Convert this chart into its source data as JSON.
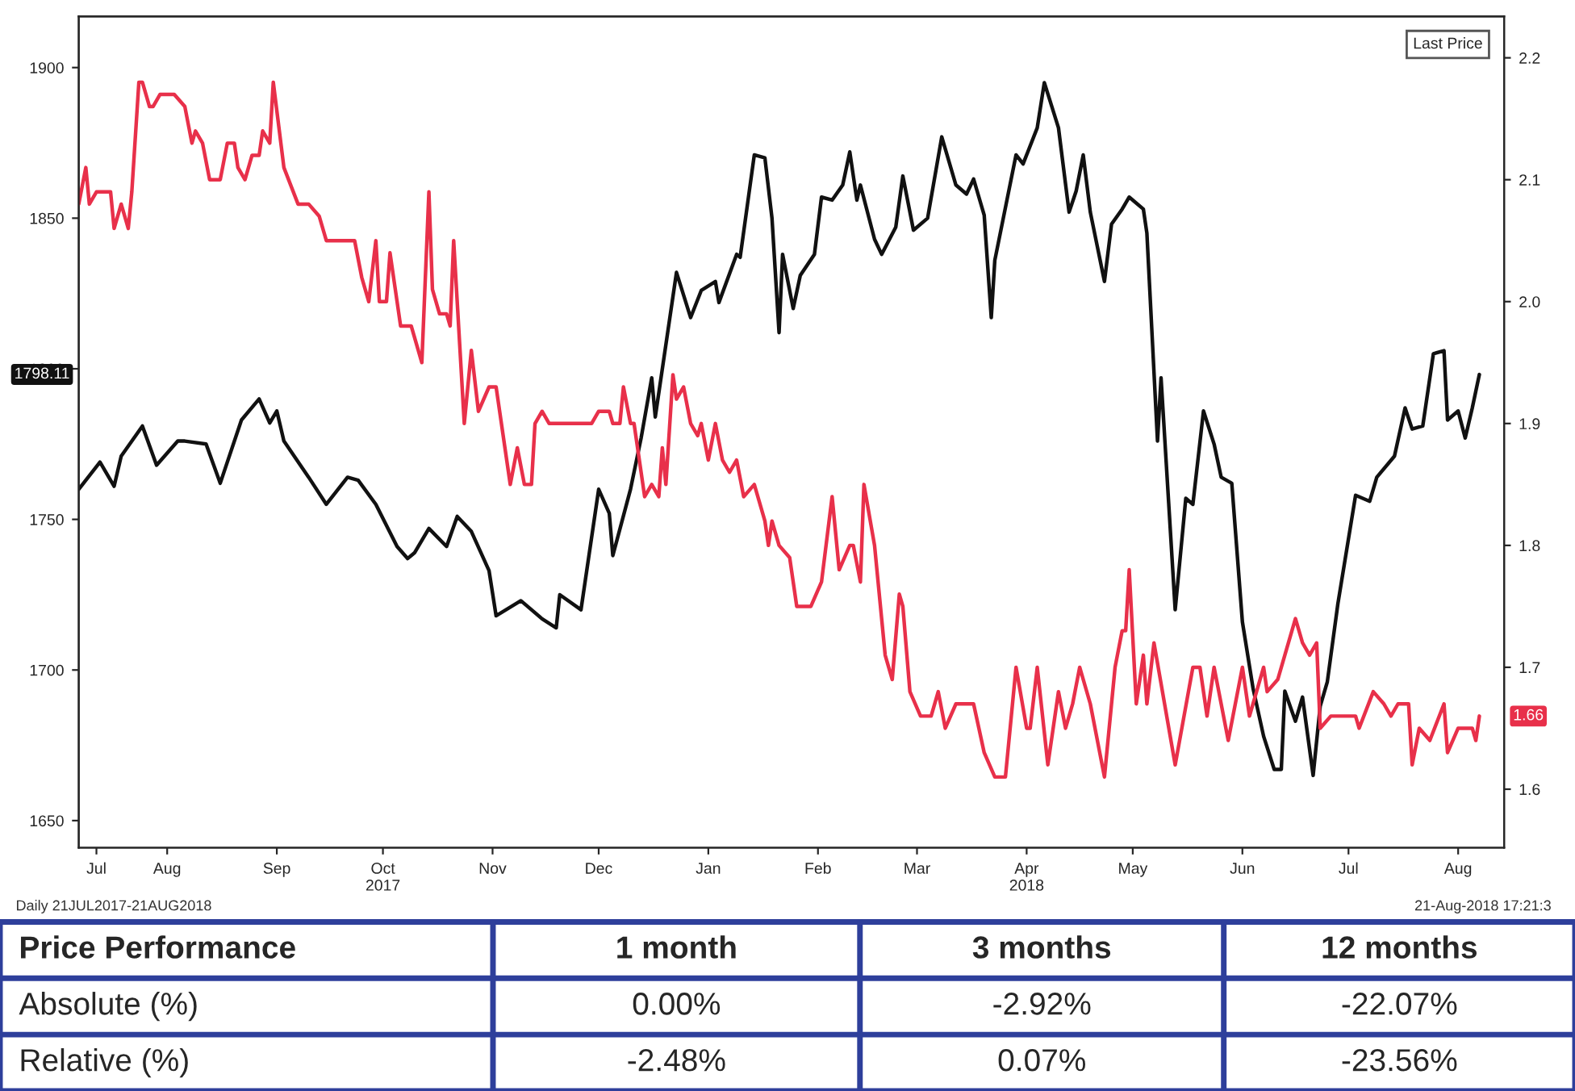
{
  "chart_data": [
    {
      "type": "line",
      "legend_title": "Last Price",
      "grid": false,
      "marker": "none",
      "line_style": "solid",
      "xlim": [
        "2017-07-21",
        "2018-08-28"
      ],
      "xticks": [
        {
          "value": "2017-07-26",
          "label": "Jul"
        },
        {
          "value": "2017-08-15",
          "label": "Aug"
        },
        {
          "value": "2017-09-15",
          "label": "Sep"
        },
        {
          "value": "2017-10-15",
          "label": "Oct\n2017"
        },
        {
          "value": "2017-11-15",
          "label": "Nov"
        },
        {
          "value": "2017-12-15",
          "label": "Dec"
        },
        {
          "value": "2018-01-15",
          "label": "Jan"
        },
        {
          "value": "2018-02-15",
          "label": "Feb"
        },
        {
          "value": "2018-03-15",
          "label": "Mar"
        },
        {
          "value": "2018-04-15",
          "label": "Apr\n2018"
        },
        {
          "value": "2018-05-15",
          "label": "May"
        },
        {
          "value": "2018-06-15",
          "label": "Jun"
        },
        {
          "value": "2018-07-15",
          "label": "Jul"
        },
        {
          "value": "2018-08-15",
          "label": "Aug"
        }
      ],
      "ylim": [
        1641,
        1917
      ],
      "yticks": [
        1650,
        1700,
        1750,
        1800,
        1850,
        1900
      ],
      "y2lim": [
        1.552,
        2.234
      ],
      "y2ticks": [
        1.6,
        1.7,
        1.8,
        1.9,
        {
          "value": 2.0,
          "label": "2.0"
        },
        2.1,
        2.2
      ],
      "annotations": [
        "Daily 21JUL2017-21AUG2018",
        "21-Aug-2018 17:21:3",
        "1.66",
        "1798.11"
      ],
      "series": [
        {
          "color": "#e8304a",
          "axis": "y2",
          "x": [
            "2017-07-21",
            "2017-07-23",
            "2017-07-24",
            "2017-07-26",
            "2017-07-30",
            "2017-07-31",
            "2017-08-02",
            "2017-08-04",
            "2017-08-05",
            "2017-08-07",
            "2017-08-08",
            "2017-08-10",
            "2017-08-11",
            "2017-08-13",
            "2017-08-17",
            "2017-08-20",
            "2017-08-22",
            "2017-08-23",
            "2017-08-25",
            "2017-08-27",
            "2017-08-30",
            "2017-09-01",
            "2017-09-03",
            "2017-09-04",
            "2017-09-06",
            "2017-09-08",
            "2017-09-10",
            "2017-09-11",
            "2017-09-13",
            "2017-09-14",
            "2017-09-17",
            "2017-09-21",
            "2017-09-24",
            "2017-09-27",
            "2017-09-29",
            "2017-10-07",
            "2017-10-09",
            "2017-10-11",
            "2017-10-13",
            "2017-10-14",
            "2017-10-16",
            "2017-10-17",
            "2017-10-19",
            "2017-10-20",
            "2017-10-23",
            "2017-10-26",
            "2017-10-28",
            "2017-10-29",
            "2017-10-31",
            "2017-11-02",
            "2017-11-03",
            "2017-11-04",
            "2017-11-07",
            "2017-11-09",
            "2017-11-11",
            "2017-11-14",
            "2017-11-16",
            "2017-11-20",
            "2017-11-22",
            "2017-11-24",
            "2017-11-26",
            "2017-11-27",
            "2017-11-29",
            "2017-12-01",
            "2017-12-13",
            "2017-12-15",
            "2017-12-18",
            "2017-12-19",
            "2017-12-21",
            "2017-12-22",
            "2017-12-24",
            "2017-12-25",
            "2017-12-28",
            "2017-12-30",
            "2018-01-01",
            "2018-01-02",
            "2018-01-03",
            "2018-01-05",
            "2018-01-06",
            "2018-01-08",
            "2018-01-10",
            "2018-01-12",
            "2018-01-13",
            "2018-01-15",
            "2018-01-17",
            "2018-01-19",
            "2018-01-21",
            "2018-01-23",
            "2018-01-25",
            "2018-01-28",
            "2018-01-31",
            "2018-02-01",
            "2018-02-02",
            "2018-02-04",
            "2018-02-07",
            "2018-02-09",
            "2018-02-13",
            "2018-02-16",
            "2018-02-19",
            "2018-02-21",
            "2018-02-24",
            "2018-02-25",
            "2018-02-27",
            "2018-02-28",
            "2018-03-03",
            "2018-03-06",
            "2018-03-08",
            "2018-03-10",
            "2018-03-11",
            "2018-03-13",
            "2018-03-16",
            "2018-03-19",
            "2018-03-21",
            "2018-03-23",
            "2018-03-26",
            "2018-03-31",
            "2018-04-03",
            "2018-04-06",
            "2018-04-09",
            "2018-04-12",
            "2018-04-15",
            "2018-04-16",
            "2018-04-18",
            "2018-04-21",
            "2018-04-24",
            "2018-04-26",
            "2018-04-28",
            "2018-04-30",
            "2018-05-03",
            "2018-05-07",
            "2018-05-10",
            "2018-05-12",
            "2018-05-13",
            "2018-05-14",
            "2018-05-16",
            "2018-05-18",
            "2018-05-19",
            "2018-05-21",
            "2018-05-27",
            "2018-06-01",
            "2018-06-03",
            "2018-06-05",
            "2018-06-07",
            "2018-06-11",
            "2018-06-15",
            "2018-06-17",
            "2018-06-21",
            "2018-06-22",
            "2018-06-25",
            "2018-06-27",
            "2018-06-30",
            "2018-07-02",
            "2018-07-04",
            "2018-07-06",
            "2018-07-07",
            "2018-07-10",
            "2018-07-17",
            "2018-07-18",
            "2018-07-22",
            "2018-07-25",
            "2018-07-27",
            "2018-07-29",
            "2018-08-01",
            "2018-08-02",
            "2018-08-04",
            "2018-08-07",
            "2018-08-11",
            "2018-08-12",
            "2018-08-15",
            "2018-08-19",
            "2018-08-20",
            "2018-08-21"
          ],
          "values": [
            2.08,
            2.11,
            2.08,
            2.09,
            2.09,
            2.06,
            2.08,
            2.06,
            2.09,
            2.18,
            2.18,
            2.16,
            2.16,
            2.17,
            2.17,
            2.16,
            2.13,
            2.14,
            2.13,
            2.1,
            2.1,
            2.13,
            2.13,
            2.11,
            2.1,
            2.12,
            2.12,
            2.14,
            2.13,
            2.18,
            2.11,
            2.08,
            2.08,
            2.07,
            2.05,
            2.05,
            2.02,
            2.0,
            2.05,
            2.0,
            2.0,
            2.04,
            2.0,
            1.98,
            1.98,
            1.95,
            2.09,
            2.01,
            1.99,
            1.99,
            1.98,
            2.05,
            1.9,
            1.96,
            1.91,
            1.93,
            1.93,
            1.85,
            1.88,
            1.85,
            1.85,
            1.9,
            1.91,
            1.9,
            1.9,
            1.91,
            1.91,
            1.9,
            1.9,
            1.93,
            1.9,
            1.9,
            1.84,
            1.85,
            1.84,
            1.88,
            1.85,
            1.94,
            1.92,
            1.93,
            1.9,
            1.89,
            1.9,
            1.87,
            1.9,
            1.87,
            1.86,
            1.87,
            1.84,
            1.85,
            1.82,
            1.8,
            1.82,
            1.8,
            1.79,
            1.75,
            1.75,
            1.77,
            1.84,
            1.78,
            1.8,
            1.8,
            1.77,
            1.85,
            1.8,
            1.71,
            1.69,
            1.76,
            1.75,
            1.68,
            1.66,
            1.66,
            1.68,
            1.65,
            1.67,
            1.67,
            1.63,
            1.61,
            1.61,
            1.7,
            1.65,
            1.65,
            1.7,
            1.62,
            1.68,
            1.65,
            1.67,
            1.7,
            1.67,
            1.61,
            1.7,
            1.73,
            1.73,
            1.78,
            1.67,
            1.71,
            1.67,
            1.72,
            1.62,
            1.7,
            1.7,
            1.66,
            1.7,
            1.64,
            1.7,
            1.66,
            1.7,
            1.68,
            1.69,
            1.71,
            1.74,
            1.72,
            1.71,
            1.72,
            1.65,
            1.66,
            1.66,
            1.65,
            1.68,
            1.67,
            1.66,
            1.67,
            1.67,
            1.62,
            1.65,
            1.64,
            1.67,
            1.63,
            1.65,
            1.65,
            1.64,
            1.66
          ]
        },
        {
          "color": "#111111",
          "x": [
            "2017-07-21",
            "2017-07-27",
            "2017-07-31",
            "2017-08-02",
            "2017-08-08",
            "2017-08-12",
            "2017-08-18",
            "2017-08-20",
            "2017-08-26",
            "2017-08-30",
            "2017-09-05",
            "2017-09-10",
            "2017-09-13",
            "2017-09-15",
            "2017-09-17",
            "2017-09-24",
            "2017-09-29",
            "2017-10-05",
            "2017-10-08",
            "2017-10-13",
            "2017-10-19",
            "2017-10-22",
            "2017-10-24",
            "2017-10-28",
            "2017-11-02",
            "2017-11-05",
            "2017-11-09",
            "2017-11-14",
            "2017-11-16",
            "2017-11-23",
            "2017-11-29",
            "2017-12-03",
            "2017-12-04",
            "2017-12-10",
            "2017-12-15",
            "2017-12-18",
            "2017-12-19",
            "2017-12-24",
            "2017-12-27",
            "2017-12-30",
            "2017-12-31",
            "2018-01-06",
            "2018-01-10",
            "2018-01-13",
            "2018-01-17",
            "2018-01-18",
            "2018-01-23",
            "2018-01-24",
            "2018-01-28",
            "2018-01-31",
            "2018-02-02",
            "2018-02-04",
            "2018-02-05",
            "2018-02-08",
            "2018-02-10",
            "2018-02-14",
            "2018-02-16",
            "2018-02-19",
            "2018-02-22",
            "2018-02-24",
            "2018-02-26",
            "2018-02-27",
            "2018-03-03",
            "2018-03-05",
            "2018-03-09",
            "2018-03-11",
            "2018-03-14",
            "2018-03-18",
            "2018-03-22",
            "2018-03-26",
            "2018-03-29",
            "2018-03-31",
            "2018-04-03",
            "2018-04-05",
            "2018-04-06",
            "2018-04-12",
            "2018-04-14",
            "2018-04-18",
            "2018-04-20",
            "2018-04-24",
            "2018-04-27",
            "2018-04-29",
            "2018-05-01",
            "2018-05-03",
            "2018-05-07",
            "2018-05-09",
            "2018-05-12",
            "2018-05-14",
            "2018-05-18",
            "2018-05-19",
            "2018-05-22",
            "2018-05-23",
            "2018-05-27",
            "2018-05-30",
            "2018-06-01",
            "2018-06-04",
            "2018-06-07",
            "2018-06-09",
            "2018-06-12",
            "2018-06-15",
            "2018-06-18",
            "2018-06-21",
            "2018-06-24",
            "2018-06-26",
            "2018-06-27",
            "2018-06-30",
            "2018-07-02",
            "2018-07-05",
            "2018-07-07",
            "2018-07-09",
            "2018-07-12",
            "2018-07-17",
            "2018-07-21",
            "2018-07-23",
            "2018-07-28",
            "2018-07-31",
            "2018-08-02",
            "2018-08-05",
            "2018-08-08",
            "2018-08-11",
            "2018-08-12",
            "2018-08-15",
            "2018-08-17",
            "2018-08-19",
            "2018-08-21"
          ],
          "values": [
            1760,
            1769,
            1761,
            1771,
            1781,
            1768,
            1776,
            1776,
            1775,
            1762,
            1783,
            1790,
            1782,
            1786,
            1776,
            1764,
            1755,
            1764,
            1763,
            1755,
            1741,
            1737,
            1739,
            1747,
            1741,
            1751,
            1746,
            1733,
            1718,
            1723,
            1717,
            1714,
            1725,
            1720,
            1760,
            1752,
            1738,
            1760,
            1777,
            1797,
            1784,
            1832,
            1817,
            1826,
            1829,
            1822,
            1838,
            1837,
            1871,
            1870,
            1850,
            1812,
            1838,
            1820,
            1831,
            1838,
            1857,
            1856,
            1861,
            1872,
            1856,
            1861,
            1843,
            1838,
            1847,
            1864,
            1846,
            1850,
            1877,
            1861,
            1858,
            1863,
            1851,
            1817,
            1836,
            1871,
            1868,
            1880,
            1895,
            1880,
            1852,
            1859,
            1871,
            1852,
            1829,
            1848,
            1853,
            1857,
            1853,
            1845,
            1776,
            1797,
            1720,
            1757,
            1755,
            1786,
            1775,
            1764,
            1762,
            1716,
            1694,
            1678,
            1667,
            1667,
            1693,
            1683,
            1691,
            1665,
            1688,
            1696,
            1722,
            1758,
            1756,
            1764,
            1771,
            1787,
            1780,
            1781,
            1805,
            1806,
            1783,
            1786,
            1777,
            1787,
            1798.11
          ]
        }
      ]
    },
    {
      "type": "other",
      "annotations": [
        "Price Performance",
        "1 month",
        "3 months",
        "12 months",
        "Absolute (%)",
        "0.00%",
        "-2.92%",
        "-22.07%",
        "Relative (%)",
        "-2.48%",
        "0.07%",
        "-23.56%"
      ]
    }
  ]
}
